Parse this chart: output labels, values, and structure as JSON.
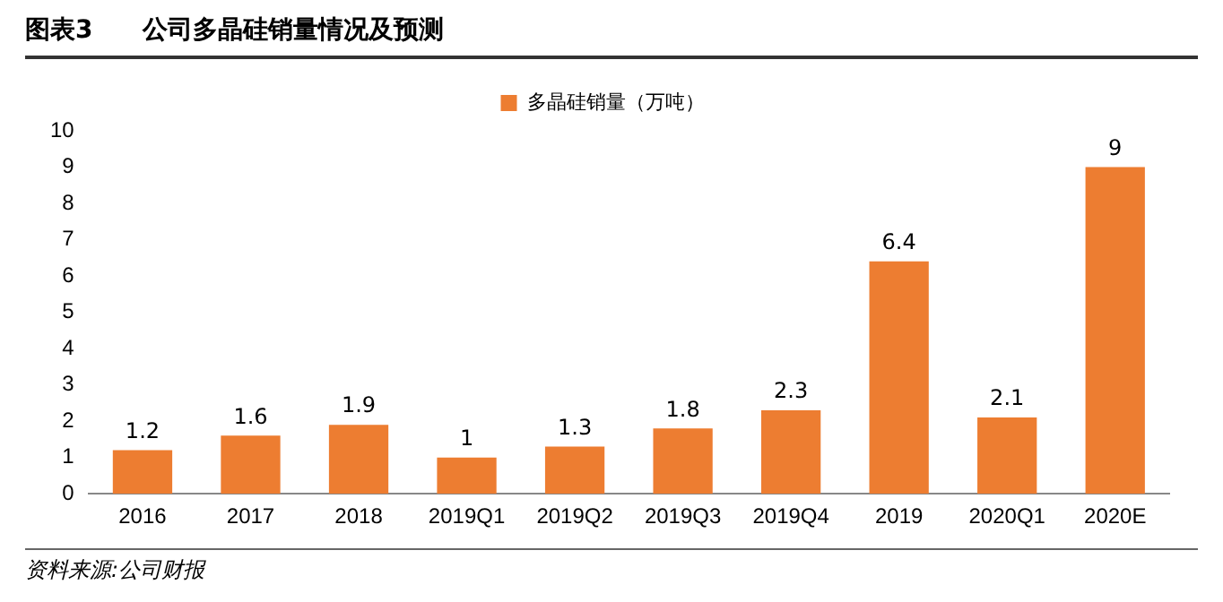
{
  "chart_data": {
    "type": "bar",
    "title": "图表3　　公司多晶硅销量情况及预测",
    "categories": [
      "2016",
      "2017",
      "2018",
      "2019Q1",
      "2019Q2",
      "2019Q3",
      "2019Q4",
      "2019",
      "2020Q1",
      "2020E"
    ],
    "series": [
      {
        "name": "多晶硅销量（万吨）",
        "color": "#ed7d31",
        "values": [
          1.2,
          1.6,
          1.9,
          1,
          1.3,
          1.8,
          2.3,
          6.4,
          2.1,
          9
        ]
      }
    ],
    "ylim": [
      0,
      10
    ],
    "yticks": [
      0,
      1,
      2,
      3,
      4,
      5,
      6,
      7,
      8,
      9,
      10
    ],
    "grid": false,
    "legend": "top",
    "data_labels": true,
    "annotations": [
      "资料来源:公司财报"
    ]
  }
}
